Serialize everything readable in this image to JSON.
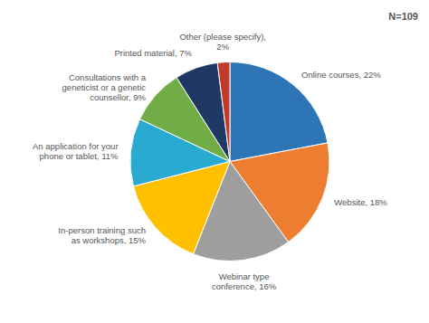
{
  "chart_data": {
    "type": "pie",
    "categories": [
      "Online courses, 22%",
      "Website, 18%",
      "Webinar type\nconference, 16%",
      "In-person training such\nas workshops, 15%",
      "An application for your\nphone or tablet, 11%",
      "Consultations with a\ngeneticist or a genetic\ncounsellor, 9%",
      "Printed material, 7%",
      "Other (please specify),\n2%"
    ],
    "values": [
      22,
      18,
      16,
      15,
      11,
      9,
      7,
      2
    ],
    "colors": [
      "#2E75B6",
      "#ED7D31",
      "#9E9E9E",
      "#FFC000",
      "#29ABD1",
      "#70AD47",
      "#1F3864",
      "#C0392B"
    ],
    "annotations": [
      "N=109"
    ]
  }
}
